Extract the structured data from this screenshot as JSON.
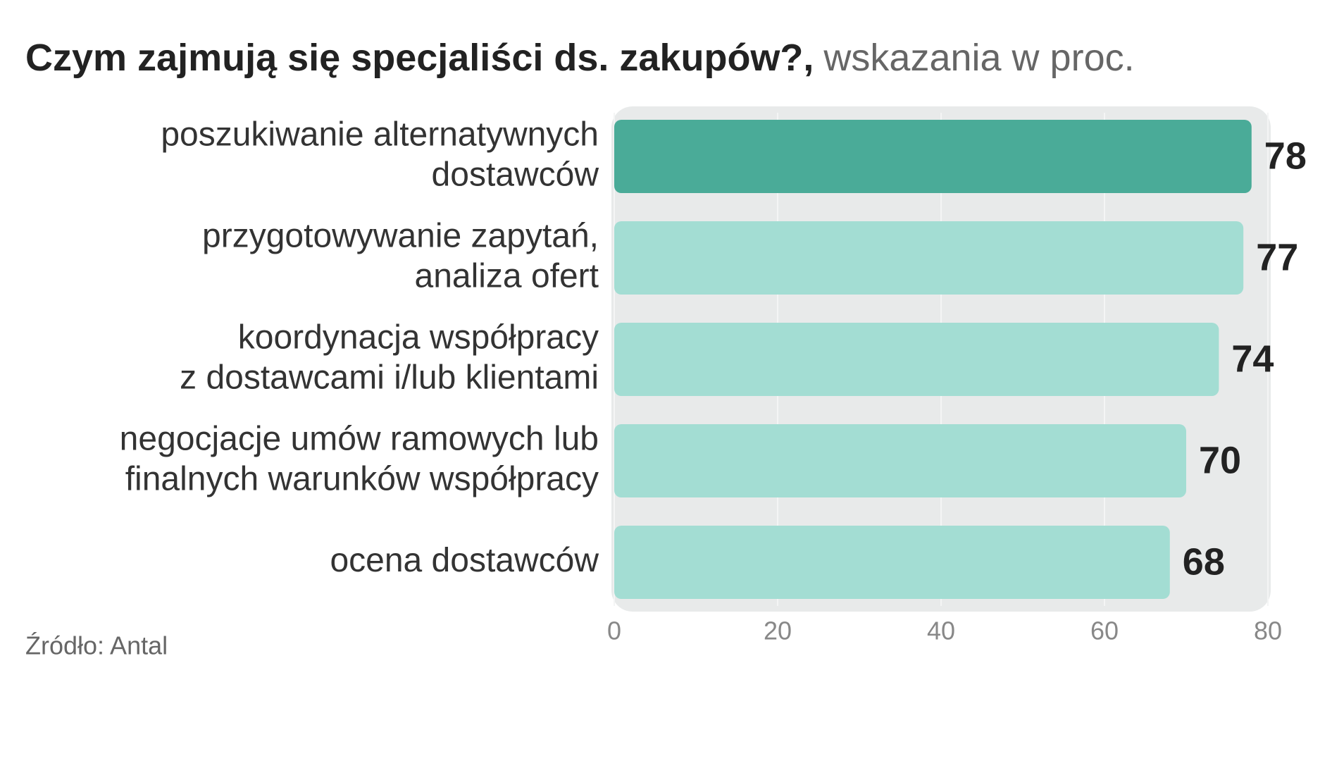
{
  "chart_data": {
    "type": "bar",
    "title": "Czym zajmują się specjaliści ds. zakupów?,",
    "subtitle": "wskazania w proc.",
    "categories": [
      [
        "poszukiwanie alternatywnych",
        "dostawców"
      ],
      [
        "przygotowywanie zapytań,",
        "analiza ofert"
      ],
      [
        "koordynacja współpracy",
        "z dostawcami i/lub klientami"
      ],
      [
        "negocjacje umów ramowych lub",
        "finalnych warunków współpracy"
      ],
      [
        "ocena dostawców"
      ]
    ],
    "values": [
      78,
      77,
      74,
      70,
      68
    ],
    "colors": [
      "#4aab98",
      "#a3ddd3",
      "#a3ddd3",
      "#a3ddd3",
      "#a3ddd3"
    ],
    "xlim": [
      0,
      80
    ],
    "xticks": [
      0,
      20,
      40,
      60,
      80
    ],
    "grid": true,
    "source": "Źródło: Antal"
  }
}
